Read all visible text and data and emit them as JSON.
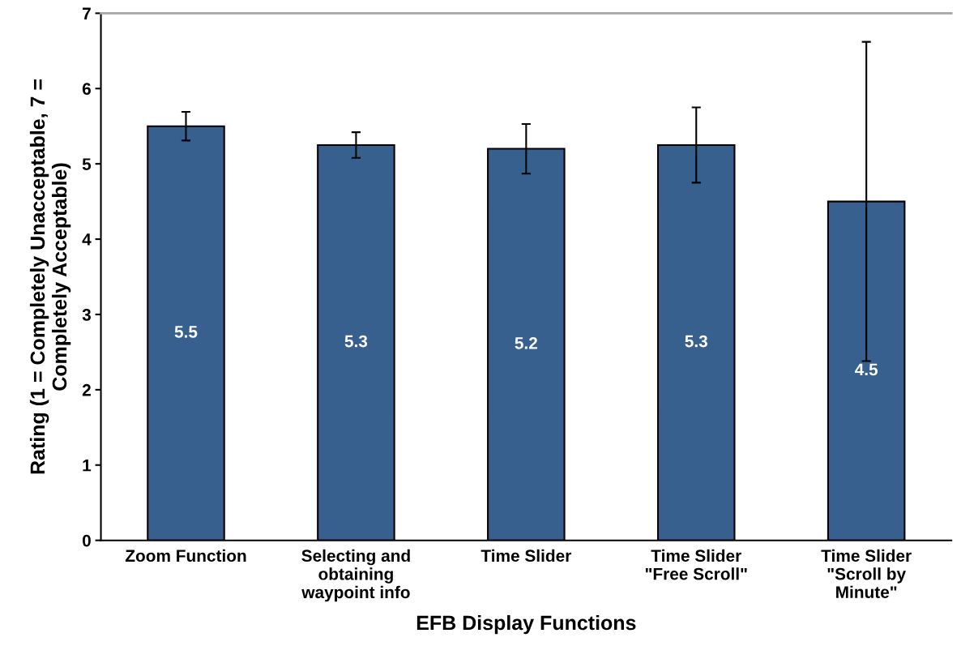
{
  "chart_data": {
    "type": "bar",
    "xlabel": "EFB Display Functions",
    "ylabel": "Rating (1 = Completely Unacceptable, 7 =\nCompletely Acceptable)",
    "categories": [
      "Zoom Function",
      "Selecting and\nobtaining\nwaypoint info",
      "Time Slider",
      "Time Slider\n\"Free Scroll\"",
      "Time Slider\n\"Scroll by\nMinute\""
    ],
    "values": [
      5.5,
      5.25,
      5.2,
      5.25,
      4.5
    ],
    "value_labels": [
      "5.5",
      "5.3",
      "5.2",
      "5.3",
      "4.5"
    ],
    "errors": [
      0.19,
      0.17,
      0.33,
      0.5,
      2.12
    ],
    "color": "#37608f",
    "ylim": [
      0,
      7
    ],
    "yticks": [
      0,
      1,
      2,
      3,
      4,
      5,
      6,
      7
    ],
    "grid": false
  }
}
